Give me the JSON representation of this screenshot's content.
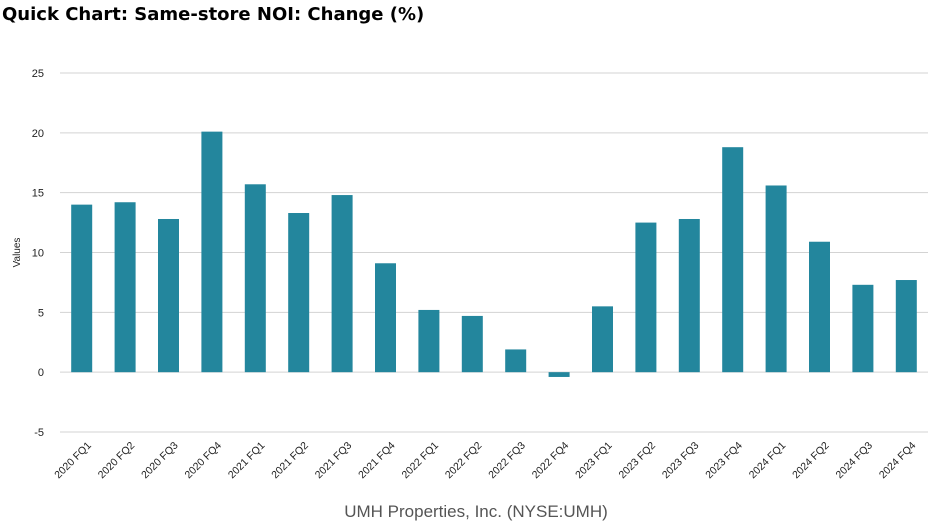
{
  "title": "Quick Chart: Same-store NOI: Change (%)",
  "caption": "UMH Properties, Inc. (NYSE:UMH)",
  "colors": {
    "bar": "#23869d",
    "grid": "#d3d3d3",
    "text": "#222222"
  },
  "chart_data": {
    "type": "bar",
    "title": "Quick Chart: Same-store NOI: Change (%)",
    "xlabel": "",
    "ylabel": "Values",
    "ylim": [
      -5,
      25
    ],
    "yticks": [
      -5,
      0,
      5,
      10,
      15,
      20,
      25
    ],
    "grid": true,
    "categories": [
      "2020 FQ1",
      "2020 FQ2",
      "2020 FQ3",
      "2020 FQ4",
      "2021 FQ1",
      "2021 FQ2",
      "2021 FQ3",
      "2021 FQ4",
      "2022 FQ1",
      "2022 FQ2",
      "2022 FQ3",
      "2022 FQ4",
      "2023 FQ1",
      "2023 FQ2",
      "2023 FQ3",
      "2023 FQ4",
      "2024 FQ1",
      "2024 FQ2",
      "2024 FQ3",
      "2024 FQ4"
    ],
    "values": [
      14.0,
      14.2,
      12.8,
      20.1,
      15.7,
      13.3,
      14.8,
      9.1,
      5.2,
      4.7,
      1.9,
      -0.4,
      5.5,
      12.5,
      12.8,
      18.8,
      15.6,
      10.9,
      7.3,
      7.7
    ]
  }
}
